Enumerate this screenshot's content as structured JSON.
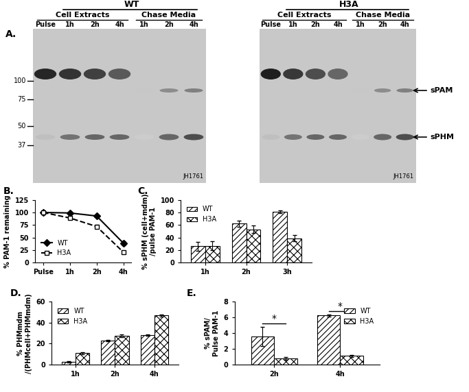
{
  "blot_panel": {
    "label": "A.",
    "arrows": [
      "sPAM",
      "sPHM"
    ],
    "blots": [
      {
        "genotype": "WT",
        "groups": [
          "Cell Extracts",
          "Chase Media"
        ],
        "lanes": [
          "Pulse",
          "1h",
          "2h",
          "4h",
          "1h",
          "2h",
          "4h"
        ],
        "markers": [
          100,
          75,
          50,
          37
        ],
        "antibody": "JH1761"
      },
      {
        "genotype": "H3A",
        "groups": [
          "Cell Extracts",
          "Chase Media"
        ],
        "lanes": [
          "Pulse",
          "1h",
          "2h",
          "4h",
          "1h",
          "2h",
          "4h"
        ],
        "antibody": "JH1761"
      }
    ]
  },
  "chart_data": [
    {
      "type": "line",
      "title": "B.",
      "categories": [
        "Pulse",
        "1h",
        "2h",
        "4h"
      ],
      "ylabel": "% PAM-1 remaining",
      "ylim": [
        0,
        125
      ],
      "yticks": [
        0,
        25,
        50,
        75,
        100,
        125
      ],
      "legend": "lower left",
      "series": [
        {
          "name": "WT",
          "color": "#000000",
          "marker": "diamond",
          "line_style": "solid",
          "values": [
            100,
            99,
            93,
            39
          ],
          "errors": [
            0,
            1,
            1,
            4
          ]
        },
        {
          "name": "H3A",
          "color": "#000000",
          "marker": "open_square",
          "line_style": "dashed",
          "values": [
            100,
            89,
            72,
            21
          ],
          "errors": [
            0,
            1,
            4,
            3
          ]
        }
      ]
    },
    {
      "type": "bar",
      "title": "C.",
      "categories": [
        "1h",
        "2h",
        "3h"
      ],
      "ylabel": "% sPHM (cell+mdm)\n/pulse PAM-1",
      "ylim": [
        0,
        100
      ],
      "yticks": [
        0,
        20,
        40,
        60,
        80,
        100
      ],
      "legend": "upper left",
      "series": [
        {
          "name": "WT",
          "color": "#ffffff",
          "values": [
            26,
            62,
            81
          ],
          "errors": [
            7,
            5,
            2
          ]
        },
        {
          "name": "H3A",
          "color": "#ffffff",
          "values": [
            27,
            53,
            39
          ],
          "errors": [
            7,
            6,
            5
          ]
        }
      ]
    },
    {
      "type": "bar",
      "title": "D.",
      "categories": [
        "1h",
        "2h",
        "4h"
      ],
      "ylabel": "% PHMmdm\n/(PHMcell+PHMmdm)",
      "ylim": [
        0,
        60
      ],
      "yticks": [
        0,
        20,
        40,
        60
      ],
      "legend": "upper left",
      "series": [
        {
          "name": "WT",
          "color": "#ffffff",
          "values": [
            2.5,
            23,
            28
          ],
          "errors": [
            0.5,
            0.5,
            0.5
          ]
        },
        {
          "name": "H3A",
          "color": "#ffffff",
          "values": [
            11,
            27.5,
            47
          ],
          "errors": [
            1,
            1.5,
            1
          ]
        }
      ]
    },
    {
      "type": "bar",
      "title": "E.",
      "categories": [
        "2h",
        "4h"
      ],
      "ylabel": "% sPAM/\nPulse PAM-1",
      "ylim": [
        0,
        8
      ],
      "yticks": [
        0,
        2,
        4,
        6,
        8
      ],
      "legend": "upper right",
      "annotations": [
        {
          "text": "*",
          "category": "2h"
        },
        {
          "text": "*",
          "category": "4h"
        }
      ],
      "series": [
        {
          "name": "WT",
          "color": "#ffffff",
          "values": [
            3.6,
            6.25
          ],
          "errors": [
            1.2,
            0.1
          ]
        },
        {
          "name": "H3A",
          "color": "#ffffff",
          "values": [
            0.8,
            1.1
          ],
          "errors": [
            0.15,
            0.1
          ]
        }
      ]
    }
  ]
}
